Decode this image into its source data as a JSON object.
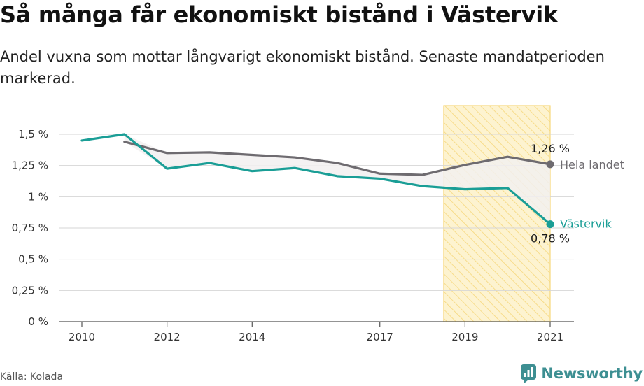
{
  "title": "Så många får ekonomiskt bistånd i Västervik",
  "subtitle": "Andel vuxna som mottar långvarigt ekonomiskt bistånd. Senaste mandatperioden markerad.",
  "source": "Källa: Kolada",
  "brand": "Newsworthy",
  "colors": {
    "vastervik": "#1a9e96",
    "hela_landet": "#6e6b70",
    "highlight_fill": "#fdf3d0",
    "highlight_hatch": "#f6d77a",
    "gap_fill": "#f2f0f0",
    "grid": "#d6d6d6",
    "axis": "#555555"
  },
  "chart_data": {
    "type": "line",
    "x_ticks": [
      2010,
      2012,
      2014,
      2017,
      2019,
      2021
    ],
    "x_range": [
      2010,
      2021
    ],
    "y_range": [
      0,
      1.5
    ],
    "y_ticks": [
      {
        "value": 0,
        "label": "0 %"
      },
      {
        "value": 0.25,
        "label": "0,25 %"
      },
      {
        "value": 0.5,
        "label": "0,5 %"
      },
      {
        "value": 0.75,
        "label": "0,75 %"
      },
      {
        "value": 1,
        "label": "1 %"
      },
      {
        "value": 1.25,
        "label": "1,25 %"
      },
      {
        "value": 1.5,
        "label": "1,5 %"
      }
    ],
    "grid": true,
    "highlight_period": [
      2018.5,
      2021
    ],
    "series": [
      {
        "key": "hela_landet",
        "name": "Hela landet",
        "points": [
          {
            "x": 2011,
            "y": 1.44
          },
          {
            "x": 2012,
            "y": 1.35
          },
          {
            "x": 2013,
            "y": 1.355
          },
          {
            "x": 2014,
            "y": 1.335
          },
          {
            "x": 2015,
            "y": 1.315
          },
          {
            "x": 2016,
            "y": 1.27
          },
          {
            "x": 2017,
            "y": 1.185
          },
          {
            "x": 2018,
            "y": 1.175
          },
          {
            "x": 2019,
            "y": 1.255
          },
          {
            "x": 2020,
            "y": 1.32
          },
          {
            "x": 2021,
            "y": 1.26
          }
        ],
        "end_value_label": "1,26 %"
      },
      {
        "key": "vastervik",
        "name": "Västervik",
        "points": [
          {
            "x": 2010,
            "y": 1.45
          },
          {
            "x": 2011,
            "y": 1.5
          },
          {
            "x": 2012,
            "y": 1.225
          },
          {
            "x": 2013,
            "y": 1.27
          },
          {
            "x": 2014,
            "y": 1.205
          },
          {
            "x": 2015,
            "y": 1.23
          },
          {
            "x": 2016,
            "y": 1.165
          },
          {
            "x": 2017,
            "y": 1.145
          },
          {
            "x": 2018,
            "y": 1.085
          },
          {
            "x": 2019,
            "y": 1.06
          },
          {
            "x": 2020,
            "y": 1.07
          },
          {
            "x": 2021,
            "y": 0.78
          }
        ],
        "end_value_label": "0,78 %"
      }
    ]
  }
}
